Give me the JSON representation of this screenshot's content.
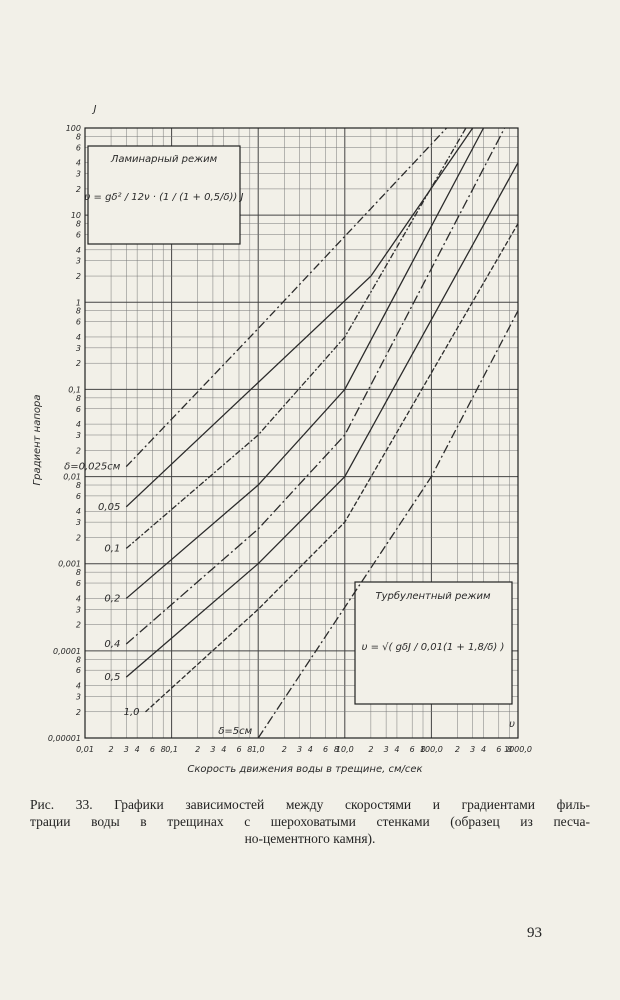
{
  "chart_data": {
    "type": "line",
    "y_symbol": "J",
    "x_symbol": "υ",
    "ylabel": "Градиент напора",
    "xlabel": "Скорость движения воды в трещине, см/сек",
    "xscale": "log",
    "yscale": "log",
    "grid": true,
    "xlim": [
      0.01,
      1000
    ],
    "ylim": [
      1e-05,
      100
    ],
    "xticks": [
      {
        "value": 0.01,
        "label": "0,01"
      },
      {
        "value": 0.02,
        "label": "2"
      },
      {
        "value": 0.03,
        "label": "3"
      },
      {
        "value": 0.04,
        "label": "4"
      },
      {
        "value": 0.06,
        "label": "6"
      },
      {
        "value": 0.08,
        "label": "8"
      },
      {
        "value": 0.1,
        "label": "0,1"
      },
      {
        "value": 0.2,
        "label": "2"
      },
      {
        "value": 0.3,
        "label": "3"
      },
      {
        "value": 0.4,
        "label": "4"
      },
      {
        "value": 0.6,
        "label": "6"
      },
      {
        "value": 0.8,
        "label": "8"
      },
      {
        "value": 1,
        "label": "1,0"
      },
      2,
      3,
      4,
      6,
      8,
      {
        "value": 10,
        "label": "10,0"
      },
      {
        "value": 20,
        "label": "2"
      },
      {
        "value": 30,
        "label": "3"
      },
      {
        "value": 40,
        "label": "4"
      },
      {
        "value": 60,
        "label": "6"
      },
      {
        "value": 80,
        "label": "8"
      },
      {
        "value": 100,
        "label": "100,0"
      },
      {
        "value": 200,
        "label": "2"
      },
      {
        "value": 300,
        "label": "3"
      },
      {
        "value": 400,
        "label": "4"
      },
      {
        "value": 600,
        "label": "6"
      },
      {
        "value": 800,
        "label": "8"
      },
      {
        "value": 1000,
        "label": "1000,0"
      }
    ],
    "yticks": [
      {
        "value": 1e-05,
        "label": "0,00001"
      },
      {
        "value": 2e-05,
        "label": "2"
      },
      {
        "value": 3e-05,
        "label": "3"
      },
      {
        "value": 4e-05,
        "label": "4"
      },
      {
        "value": 6e-05,
        "label": "6"
      },
      {
        "value": 8e-05,
        "label": "8"
      },
      {
        "value": 0.0001,
        "label": "0,0001"
      },
      {
        "value": 0.0002,
        "label": "2"
      },
      {
        "value": 0.0003,
        "label": "3"
      },
      {
        "value": 0.0004,
        "label": "4"
      },
      {
        "value": 0.0006,
        "label": "6"
      },
      {
        "value": 0.0008,
        "label": "8"
      },
      {
        "value": 0.001,
        "label": "0,001"
      },
      {
        "value": 0.002,
        "label": "2"
      },
      {
        "value": 0.003,
        "label": "3"
      },
      {
        "value": 0.004,
        "label": "4"
      },
      {
        "value": 0.006,
        "label": "6"
      },
      {
        "value": 0.008,
        "label": "8"
      },
      {
        "value": 0.01,
        "label": "0,01"
      },
      {
        "value": 0.02,
        "label": "2"
      },
      {
        "value": 0.03,
        "label": "3"
      },
      {
        "value": 0.04,
        "label": "4"
      },
      {
        "value": 0.06,
        "label": "6"
      },
      {
        "value": 0.08,
        "label": "8"
      },
      {
        "value": 0.1,
        "label": "0,1"
      },
      {
        "value": 0.2,
        "label": "2"
      },
      {
        "value": 0.3,
        "label": "3"
      },
      {
        "value": 0.4,
        "label": "4"
      },
      {
        "value": 0.6,
        "label": "6"
      },
      {
        "value": 0.8,
        "label": "8"
      },
      1,
      2,
      3,
      4,
      6,
      8,
      10,
      {
        "value": 20,
        "label": "2"
      },
      {
        "value": 30,
        "label": "3"
      },
      {
        "value": 40,
        "label": "4"
      },
      {
        "value": 60,
        "label": "6"
      },
      {
        "value": 80,
        "label": "8"
      },
      100
    ],
    "series": [
      {
        "name": "δ=0,025см",
        "color": "#2b2b2b",
        "x": [
          0.03,
          1,
          150
        ],
        "values": [
          0.013,
          0.5,
          100
        ]
      },
      {
        "name": "0,05",
        "color": "#2b2b2b",
        "x": [
          0.03,
          1,
          20,
          300
        ],
        "values": [
          0.0045,
          0.12,
          2,
          100
        ]
      },
      {
        "name": "0,1",
        "color": "#2b2b2b",
        "x": [
          0.03,
          1,
          10,
          250
        ],
        "values": [
          0.0015,
          0.03,
          0.4,
          100
        ]
      },
      {
        "name": "0,2",
        "color": "#2b2b2b",
        "x": [
          0.03,
          1,
          10,
          400
        ],
        "values": [
          0.0004,
          0.008,
          0.1,
          100
        ]
      },
      {
        "name": "0,4",
        "color": "#2b2b2b",
        "x": [
          0.03,
          1,
          10,
          700
        ],
        "values": [
          0.00012,
          0.0025,
          0.03,
          100
        ]
      },
      {
        "name": "0,5",
        "color": "#2b2b2b",
        "x": [
          0.03,
          1,
          10,
          1000
        ],
        "values": [
          5e-05,
          0.001,
          0.01,
          40
        ]
      },
      {
        "name": "1,0",
        "color": "#2b2b2b",
        "x": [
          0.05,
          1,
          10,
          1000
        ],
        "values": [
          2e-05,
          0.0003,
          0.003,
          8
        ]
      },
      {
        "name": "δ=5см",
        "color": "#2b2b2b",
        "x": [
          1,
          100,
          1000
        ],
        "values": [
          1e-05,
          0.01,
          0.8
        ]
      }
    ],
    "annotations": [
      {
        "title": "Ламинарный режим",
        "formula": "υ = gδ² / 12ν · (1 / (1 + 0,5/δ)) J"
      },
      {
        "title": "Турбулентный режим",
        "formula": "υ = √( gδJ / 0,01(1 + 1,8/δ) )"
      }
    ]
  },
  "caption": [
    "Рис. 33. Графики зависимостей между скоростями и градиентами филь-",
    "трации воды в трещинах с шероховатыми стенками (образец из песча-",
    "но-цементного камня)."
  ],
  "page_number": "93"
}
